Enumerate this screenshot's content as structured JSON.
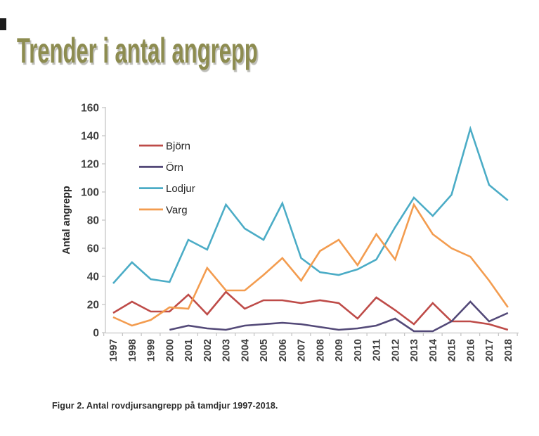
{
  "page": {
    "title": "Trender i antal angrepp",
    "title_color": "#8d8c50",
    "caption": "Figur 2. Antal rovdjursangrepp på tamdjur 1997-2018."
  },
  "chart_data": {
    "type": "line",
    "title": "",
    "xlabel": "",
    "ylabel": "Antal angrepp",
    "ylim": [
      0,
      160
    ],
    "ytick_step": 20,
    "grid": false,
    "legend_position": "upper-left-inside",
    "axis_color": "#c6c6c6",
    "tick_label_color": "#3f3f3f",
    "categories": [
      "1997",
      "1998",
      "1999",
      "2000",
      "2001",
      "2002",
      "2003",
      "2004",
      "2005",
      "2006",
      "2007",
      "2008",
      "2009",
      "2010",
      "2011",
      "2012",
      "2013",
      "2014",
      "2015",
      "2016",
      "2017",
      "2018"
    ],
    "series": [
      {
        "name": "Björn",
        "color": "#be4b48",
        "values": [
          14,
          22,
          15,
          15,
          27,
          13,
          29,
          17,
          23,
          23,
          21,
          23,
          21,
          10,
          25,
          16,
          6,
          21,
          8,
          8,
          6,
          2
        ]
      },
      {
        "name": "Örn",
        "color": "#534978",
        "values": [
          null,
          null,
          null,
          2,
          5,
          3,
          2,
          5,
          6,
          7,
          6,
          4,
          2,
          3,
          5,
          10,
          1,
          1,
          8,
          22,
          8,
          14
        ]
      },
      {
        "name": "Lodjur",
        "color": "#4bacc6",
        "values": [
          35,
          50,
          38,
          36,
          66,
          59,
          91,
          74,
          66,
          92,
          53,
          43,
          41,
          45,
          52,
          75,
          96,
          83,
          98,
          145,
          105,
          94
        ]
      },
      {
        "name": "Varg",
        "color": "#f39c4f",
        "values": [
          11,
          5,
          9,
          18,
          17,
          46,
          30,
          30,
          41,
          53,
          37,
          58,
          66,
          48,
          70,
          52,
          91,
          70,
          60,
          54,
          37,
          18
        ]
      }
    ]
  }
}
